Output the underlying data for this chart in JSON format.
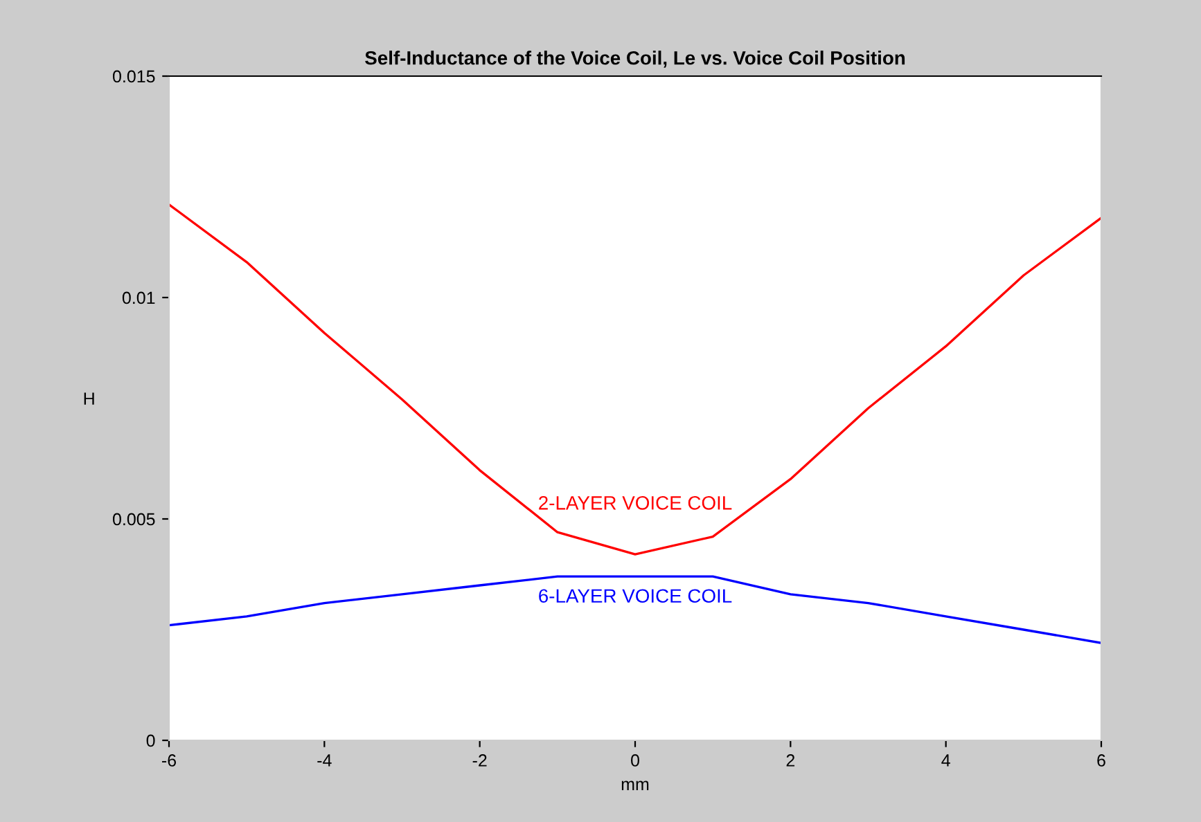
{
  "chart_data": {
    "type": "line",
    "title": "Self-Inductance of the Voice Coil, Le vs. Voice Coil Position",
    "xlabel": "mm",
    "ylabel": "H",
    "x": [
      -6,
      -5,
      -4,
      -3,
      -2,
      -1,
      0,
      1,
      2,
      3,
      4,
      5,
      6
    ],
    "series": [
      {
        "color": "#ff0000",
        "values": [
          0.0121,
          0.0108,
          0.0092,
          0.0077,
          0.0061,
          0.0047,
          0.0042,
          0.0046,
          0.0059,
          0.0075,
          0.0089,
          0.0105,
          0.0118
        ]
      },
      {
        "color": "#0000ff",
        "values": [
          0.0026,
          0.0028,
          0.0031,
          0.0033,
          0.0035,
          0.0037,
          0.0037,
          0.0037,
          0.0033,
          0.0031,
          0.0028,
          0.0025,
          0.0022
        ]
      }
    ],
    "annotations": [
      "2-LAYER VOICE COIL",
      "6-LAYER VOICE COIL"
    ],
    "xlim": [
      -6,
      6
    ],
    "ylim": [
      0,
      0.015
    ],
    "xticks": [
      -6,
      -4,
      -2,
      0,
      2,
      4,
      6
    ],
    "yticks": [
      0,
      0.005,
      0.01,
      0.015
    ],
    "grid": false,
    "legend": false,
    "line_style": "solid",
    "marker": "none"
  }
}
